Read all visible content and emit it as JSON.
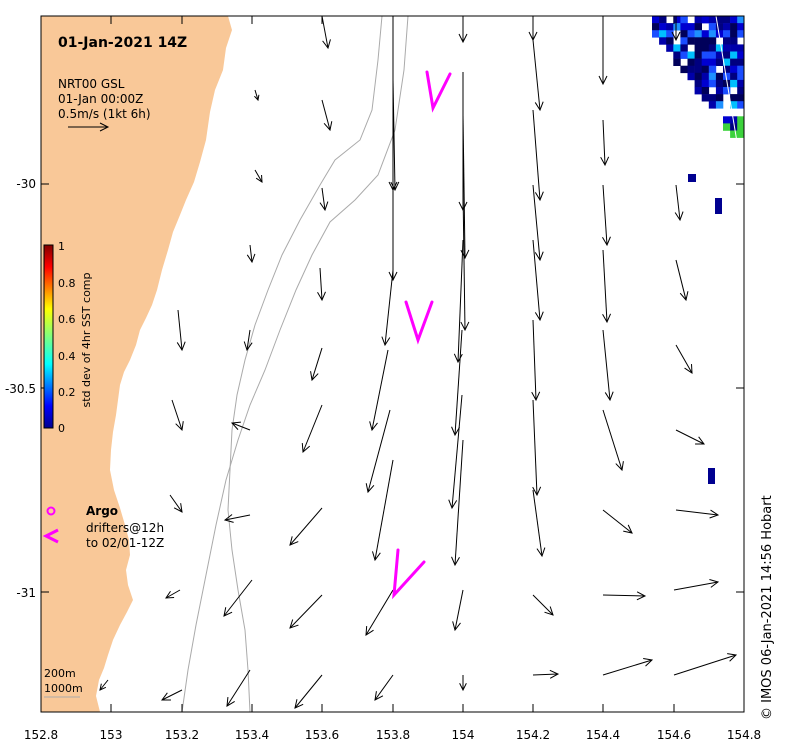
{
  "title": "01-Jan-2021 14Z",
  "product": {
    "name": "NRT00 GSL",
    "time": "01-Jan 00:00Z",
    "scale": "0.5m/s (1kt 6h)"
  },
  "colorbar": {
    "label": "std dev of 4hr SST comp",
    "ticks": [
      "1",
      "0.8",
      "0.6",
      "0.4",
      "0.2",
      "0"
    ]
  },
  "legend": {
    "argo": "Argo",
    "drifters_line1": "drifters@12h",
    "drifters_line2": "to 02/01-12Z"
  },
  "isobaths": {
    "shallow": "200m",
    "deep": "1000m"
  },
  "credit": "© IMOS 06-Jan-2021 14:56 Hobart",
  "axes": {
    "lon_ticks": [
      "152.8",
      "153",
      "153.2",
      "153.4",
      "153.6",
      "153.8",
      "154",
      "154.2",
      "154.4",
      "154.6",
      "154.8"
    ],
    "lat_ticks": [
      "-30",
      "-30.5",
      "-31"
    ]
  },
  "colors": {
    "land": "#f9c898",
    "isobath": "#aaaaaa",
    "drifter": "#ff00ff",
    "vector": "#000000"
  }
}
